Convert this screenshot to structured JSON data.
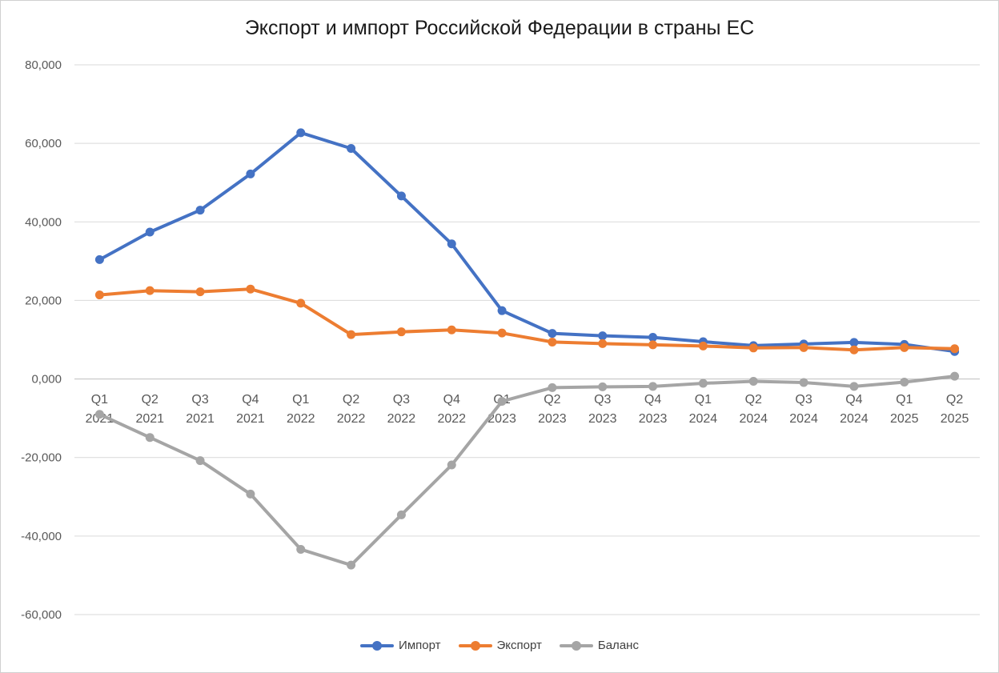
{
  "chart_data": {
    "type": "line",
    "title": "Экспорт и импорт Российской Федерации в страны ЕС",
    "xlabel": "",
    "ylabel": "",
    "ylim": [
      -60000,
      80000
    ],
    "yticks": [
      80000,
      60000,
      40000,
      20000,
      0,
      -20000,
      -40000,
      -60000
    ],
    "ytick_labels": [
      "80,000",
      "60,000",
      "40,000",
      "20,000",
      "0,000",
      "-20,000",
      "-40,000",
      "-60,000"
    ],
    "grid": true,
    "legend_position": "bottom",
    "categories": [
      [
        "Q1",
        "2021"
      ],
      [
        "Q2",
        "2021"
      ],
      [
        "Q3",
        "2021"
      ],
      [
        "Q4",
        "2021"
      ],
      [
        "Q1",
        "2022"
      ],
      [
        "Q2",
        "2022"
      ],
      [
        "Q3",
        "2022"
      ],
      [
        "Q4",
        "2022"
      ],
      [
        "Q1",
        "2023"
      ],
      [
        "Q2",
        "2023"
      ],
      [
        "Q3",
        "2023"
      ],
      [
        "Q4",
        "2023"
      ],
      [
        "Q1",
        "2024"
      ],
      [
        "Q2",
        "2024"
      ],
      [
        "Q3",
        "2024"
      ],
      [
        "Q4",
        "2024"
      ],
      [
        "Q1",
        "2025"
      ],
      [
        "Q2",
        "2025"
      ]
    ],
    "series": [
      {
        "name": "Импорт",
        "color": "#4472c4",
        "values": [
          30400,
          37400,
          43000,
          52200,
          62700,
          58700,
          46600,
          34400,
          17400,
          11600,
          11000,
          10600,
          9500,
          8500,
          8900,
          9300,
          8800,
          7000
        ]
      },
      {
        "name": "Экспорт",
        "color": "#ed7d31",
        "values": [
          21400,
          22500,
          22200,
          22900,
          19300,
          11300,
          12000,
          12500,
          11700,
          9400,
          9000,
          8700,
          8400,
          7900,
          8000,
          7400,
          8000,
          7700
        ]
      },
      {
        "name": "Баланс",
        "color": "#a5a5a5",
        "values": [
          -9000,
          -14900,
          -20800,
          -29300,
          -43400,
          -47400,
          -34600,
          -21900,
          -5700,
          -2200,
          -2000,
          -1900,
          -1100,
          -600,
          -900,
          -1900,
          -800,
          700
        ]
      }
    ]
  }
}
